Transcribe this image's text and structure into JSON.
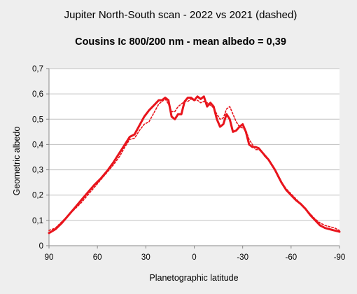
{
  "chart_data": {
    "type": "line",
    "title": "Jupiter North-South scan - 2022 vs 2021 (dashed)",
    "subtitle": "Cousins Ic 800/200 nm - mean albedo = 0,39",
    "xlabel": "Planetographic latitude",
    "ylabel": "Geometric albedo",
    "xlim": [
      90,
      -90
    ],
    "ylim": [
      0,
      0.7
    ],
    "xticks": [
      90,
      60,
      30,
      0,
      -30,
      -60,
      -90
    ],
    "xtick_labels": [
      "90",
      "60",
      "30",
      "0",
      "-30",
      "-60",
      "-90"
    ],
    "yticks": [
      0,
      0.1,
      0.2,
      0.3,
      0.4,
      0.5,
      0.6,
      0.7
    ],
    "ytick_labels": [
      "0",
      "0,1",
      "0,2",
      "0,3",
      "0,4",
      "0,5",
      "0,6",
      "0,7"
    ],
    "grid": true,
    "legend": "none",
    "colors": {
      "line": "#e8141c",
      "grid": "#c0c0c0",
      "plot_bg": "#ffffff",
      "page_bg": "#eeeeee"
    },
    "series": [
      {
        "style": "solid",
        "x": [
          90,
          86,
          82,
          78,
          74,
          70,
          66,
          62,
          58,
          54,
          50,
          46,
          43,
          40,
          37,
          34,
          31,
          28,
          25,
          22,
          20,
          18,
          16,
          14,
          12,
          10,
          8,
          6,
          4,
          2,
          0,
          -2,
          -4,
          -6,
          -8,
          -10,
          -12,
          -14,
          -16,
          -18,
          -20,
          -22,
          -24,
          -26,
          -28,
          -30,
          -32,
          -34,
          -36,
          -38,
          -40,
          -42,
          -44,
          -46,
          -48,
          -50,
          -52,
          -54,
          -57,
          -60,
          -63,
          -66,
          -69,
          -72,
          -75,
          -78,
          -81,
          -84,
          -87,
          -90
        ],
        "y": [
          0.05,
          0.065,
          0.09,
          0.12,
          0.15,
          0.18,
          0.21,
          0.24,
          0.265,
          0.295,
          0.33,
          0.37,
          0.4,
          0.43,
          0.44,
          0.475,
          0.51,
          0.535,
          0.555,
          0.575,
          0.575,
          0.585,
          0.575,
          0.51,
          0.5,
          0.52,
          0.52,
          0.57,
          0.585,
          0.585,
          0.575,
          0.59,
          0.58,
          0.59,
          0.55,
          0.565,
          0.55,
          0.5,
          0.47,
          0.48,
          0.52,
          0.5,
          0.45,
          0.455,
          0.47,
          0.48,
          0.45,
          0.4,
          0.39,
          0.39,
          0.385,
          0.37,
          0.355,
          0.34,
          0.32,
          0.3,
          0.275,
          0.25,
          0.22,
          0.2,
          0.18,
          0.165,
          0.145,
          0.12,
          0.1,
          0.08,
          0.07,
          0.065,
          0.06,
          0.055
        ]
      },
      {
        "style": "dashed",
        "x": [
          90,
          86,
          82,
          78,
          74,
          70,
          66,
          62,
          58,
          54,
          50,
          46,
          43,
          40,
          37,
          34,
          31,
          28,
          25,
          22,
          20,
          18,
          16,
          14,
          12,
          10,
          8,
          6,
          4,
          2,
          0,
          -2,
          -4,
          -6,
          -8,
          -10,
          -12,
          -14,
          -16,
          -18,
          -20,
          -22,
          -24,
          -26,
          -28,
          -30,
          -32,
          -34,
          -36,
          -38,
          -40,
          -42,
          -44,
          -46,
          -48,
          -50,
          -52,
          -54,
          -57,
          -60,
          -63,
          -66,
          -69,
          -72,
          -75,
          -78,
          -81,
          -84,
          -87,
          -90
        ],
        "y": [
          0.06,
          0.07,
          0.095,
          0.12,
          0.145,
          0.17,
          0.2,
          0.23,
          0.26,
          0.29,
          0.32,
          0.355,
          0.39,
          0.42,
          0.425,
          0.455,
          0.48,
          0.49,
          0.525,
          0.56,
          0.57,
          0.58,
          0.56,
          0.53,
          0.53,
          0.55,
          0.56,
          0.57,
          0.57,
          0.58,
          0.575,
          0.575,
          0.565,
          0.57,
          0.565,
          0.555,
          0.545,
          0.52,
          0.5,
          0.505,
          0.54,
          0.55,
          0.52,
          0.49,
          0.47,
          0.465,
          0.455,
          0.42,
          0.4,
          0.38,
          0.38,
          0.37,
          0.35,
          0.34,
          0.32,
          0.3,
          0.27,
          0.25,
          0.225,
          0.205,
          0.185,
          0.165,
          0.145,
          0.125,
          0.105,
          0.09,
          0.08,
          0.075,
          0.07,
          0.06
        ]
      }
    ]
  }
}
